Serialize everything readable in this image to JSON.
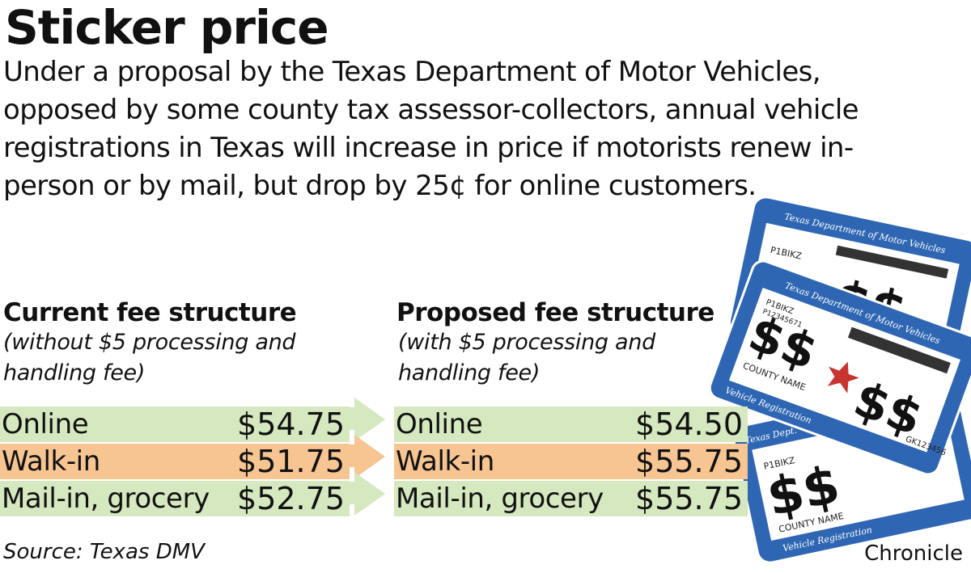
{
  "title": "Sticker price",
  "lede": "Under a proposal by the Texas Department of Motor Vehicles, opposed by some county tax assessor-collectors, annual vehicle registrations  in Texas will increase in price if motorists renew in-person or by mail, but drop by 25¢ for online customers.",
  "current": {
    "heading": "Current fee structure",
    "subheading": "(without $5 processing and handling fee)"
  },
  "proposed": {
    "heading": "Proposed fee structure",
    "subheading": "(with $5 processing and handling fee)"
  },
  "colors": {
    "online": "#d5e8bf",
    "walkin": "#f6c592",
    "mail": "#d5e8bf",
    "sticker_blue": "#2f66b3"
  },
  "chart_data": {
    "type": "table",
    "title": "Sticker price",
    "columns": [
      "Current fee structure",
      "Proposed fee structure"
    ],
    "rows": [
      {
        "label": "Online",
        "current": 54.75,
        "proposed": 54.5,
        "current_text": "$54.75",
        "proposed_text": "$54.50"
      },
      {
        "label": "Walk-in",
        "current": 51.75,
        "proposed": 55.75,
        "current_text": "$51.75",
        "proposed_text": "$55.75"
      },
      {
        "label": "Mail-in, grocery",
        "current": 52.75,
        "proposed": 55.75,
        "current_text": "$52.75",
        "proposed_text": "$55.75"
      }
    ]
  },
  "stickers": {
    "agency": "Texas Department of Motor Vehicles",
    "agency_short": "Texas Dept.",
    "plate": "P1BIKZ",
    "code": "P12345671",
    "dollar": "$$",
    "county": "COUNTY NAME",
    "footer": "Vehicle Registration",
    "serial": "GK123456"
  },
  "source": "Source: Texas DMV",
  "credit": "Chronicle"
}
